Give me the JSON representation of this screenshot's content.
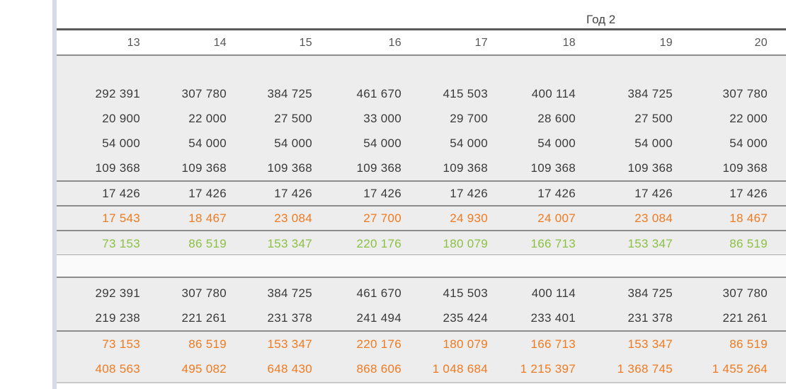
{
  "header": {
    "year_label": "Год 2",
    "columns": [
      "13",
      "14",
      "15",
      "16",
      "17",
      "18",
      "19",
      "20"
    ]
  },
  "section1": {
    "rows": [
      {
        "values": [
          "292 391",
          "307 780",
          "384 725",
          "461 670",
          "415 503",
          "400 114",
          "384 725",
          "307 780"
        ]
      },
      {
        "values": [
          "20 900",
          "22 000",
          "27 500",
          "33 000",
          "29 700",
          "28 600",
          "27 500",
          "22 000"
        ]
      },
      {
        "values": [
          "54 000",
          "54 000",
          "54 000",
          "54 000",
          "54 000",
          "54 000",
          "54 000",
          "54 000"
        ]
      },
      {
        "values": [
          "109 368",
          "109 368",
          "109 368",
          "109 368",
          "109 368",
          "109 368",
          "109 368",
          "109 368"
        ]
      },
      {
        "values": [
          "17 426",
          "17 426",
          "17 426",
          "17 426",
          "17 426",
          "17 426",
          "17 426",
          "17 426"
        ]
      },
      {
        "values": [
          "17 543",
          "18 467",
          "23 084",
          "27 700",
          "24 930",
          "24 007",
          "23 084",
          "18 467"
        ]
      },
      {
        "values": [
          "73 153",
          "86 519",
          "153 347",
          "220 176",
          "180 079",
          "166 713",
          "153 347",
          "86 519"
        ]
      }
    ]
  },
  "section2": {
    "rows": [
      {
        "values": [
          "292 391",
          "307 780",
          "384 725",
          "461 670",
          "415 503",
          "400 114",
          "384 725",
          "307 780"
        ]
      },
      {
        "values": [
          "219 238",
          "221 261",
          "231 378",
          "241 494",
          "235 424",
          "233 401",
          "231 378",
          "221 261"
        ]
      },
      {
        "values": [
          "73 153",
          "86 519",
          "153 347",
          "220 176",
          "180 079",
          "166 713",
          "153 347",
          "86 519"
        ]
      },
      {
        "values": [
          "408 563",
          "495 082",
          "648 430",
          "868 606",
          "1 048 684",
          "1 215 397",
          "1 368 745",
          "1 455 264"
        ]
      }
    ]
  },
  "colors": {
    "dark": "#3a3a3a",
    "orange": "#f07a20",
    "green": "#8cc043",
    "gray_fill": "#ededed"
  }
}
